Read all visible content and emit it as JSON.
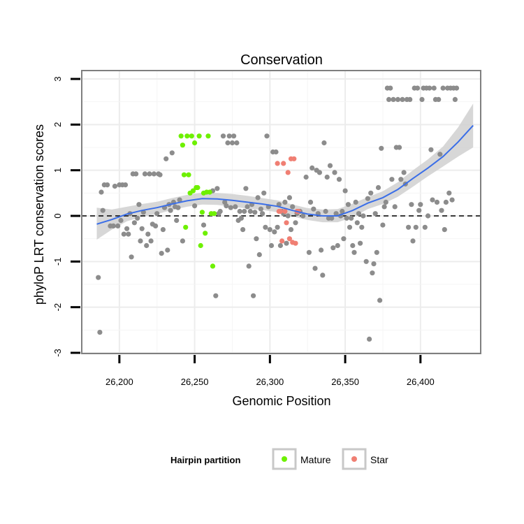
{
  "chart_data": {
    "type": "scatter",
    "title": "Conservation",
    "xlabel": "Genomic Position",
    "ylabel": "phyloP LRT conservation scores",
    "xlim": [
      26175,
      26440
    ],
    "ylim": [
      -3,
      3
    ],
    "xticks": [
      26200,
      26250,
      26300,
      26350,
      26400
    ],
    "xtick_labels": [
      "26,200",
      "26,250",
      "26,300",
      "26,350",
      "26,400"
    ],
    "yticks": [
      -3,
      -2,
      -1,
      0,
      1,
      2,
      3
    ],
    "ytick_labels": [
      "-3",
      "-2",
      "-1",
      "0",
      "1",
      "2",
      "3"
    ],
    "grid": true,
    "reference_line": {
      "y": 0,
      "style": "dashed"
    },
    "legend": {
      "title": "Hairpin partition",
      "position": "bottom",
      "entries": [
        {
          "label": "Mature",
          "color": "#6ef000"
        },
        {
          "label": "Star",
          "color": "#f07f73"
        }
      ]
    },
    "colors": {
      "other": "#8c8c8c",
      "Mature": "#6ef000",
      "Star": "#f07f73",
      "smooth": "#3a6ee8",
      "band": "#d3d3d3"
    },
    "series": [
      {
        "name": "",
        "color": "#8c8c8c",
        "points": [
          [
            26186,
            -1.35
          ],
          [
            26187,
            -2.55
          ],
          [
            26188,
            0.52
          ],
          [
            26189,
            0.12
          ],
          [
            26190,
            0.68
          ],
          [
            26192,
            0.68
          ],
          [
            26194,
            -0.22
          ],
          [
            26196,
            -0.22
          ],
          [
            26197,
            0.65
          ],
          [
            26199,
            -0.22
          ],
          [
            26200,
            0.68
          ],
          [
            26201,
            -0.1
          ],
          [
            26202,
            0.68
          ],
          [
            26203,
            -0.4
          ],
          [
            26204,
            0.68
          ],
          [
            26205,
            -0.28
          ],
          [
            26206,
            -0.4
          ],
          [
            26207,
            0.05
          ],
          [
            26208,
            -0.9
          ],
          [
            26209,
            0.92
          ],
          [
            26210,
            -0.15
          ],
          [
            26211,
            0.92
          ],
          [
            26212,
            -0.05
          ],
          [
            26213,
            0.25
          ],
          [
            26214,
            -0.55
          ],
          [
            26215,
            -0.28
          ],
          [
            26216,
            0.08
          ],
          [
            26217,
            0.92
          ],
          [
            26218,
            -0.65
          ],
          [
            26219,
            -0.4
          ],
          [
            26220,
            0.92
          ],
          [
            26221,
            -0.55
          ],
          [
            26222,
            -0.18
          ],
          [
            26223,
            0.92
          ],
          [
            26224,
            -0.22
          ],
          [
            26225,
            0.05
          ],
          [
            26226,
            0.92
          ],
          [
            26227,
            0.9
          ],
          [
            26228,
            -0.82
          ],
          [
            26229,
            -0.3
          ],
          [
            26230,
            0.18
          ],
          [
            26231,
            1.25
          ],
          [
            26232,
            -0.75
          ],
          [
            26233,
            0.25
          ],
          [
            26234,
            0.12
          ],
          [
            26235,
            1.38
          ],
          [
            26236,
            0.3
          ],
          [
            26237,
            0.2
          ],
          [
            26238,
            -0.1
          ],
          [
            26239,
            0.18
          ],
          [
            26240,
            0.35
          ],
          [
            26242,
            -0.55
          ],
          [
            26250,
            0.22
          ],
          [
            26256,
            -0.2
          ],
          [
            26262,
            0.55
          ],
          [
            26264,
            -1.75
          ],
          [
            26265,
            0.6
          ],
          [
            26266,
            0.05
          ],
          [
            26267,
            0.1
          ],
          [
            26269,
            1.75
          ],
          [
            26270,
            0.3
          ],
          [
            26271,
            0.22
          ],
          [
            26272,
            1.6
          ],
          [
            26273,
            1.75
          ],
          [
            26274,
            0.18
          ],
          [
            26275,
            1.6
          ],
          [
            26276,
            1.75
          ],
          [
            26277,
            0.2
          ],
          [
            26278,
            1.6
          ],
          [
            26279,
            -0.1
          ],
          [
            26280,
            0.1
          ],
          [
            26281,
            -0.05
          ],
          [
            26282,
            -0.3
          ],
          [
            26283,
            0.1
          ],
          [
            26284,
            0.6
          ],
          [
            26285,
            0.2
          ],
          [
            26286,
            -1.1
          ],
          [
            26287,
            0.1
          ],
          [
            26288,
            0.25
          ],
          [
            26289,
            -1.75
          ],
          [
            26290,
            0.08
          ],
          [
            26291,
            -0.5
          ],
          [
            26292,
            0.4
          ],
          [
            26293,
            -0.85
          ],
          [
            26294,
            0.15
          ],
          [
            26295,
            0.05
          ],
          [
            26296,
            0.5
          ],
          [
            26297,
            -0.25
          ],
          [
            26298,
            1.75
          ],
          [
            26299,
            0.2
          ],
          [
            26300,
            -0.3
          ],
          [
            26301,
            -0.65
          ],
          [
            26302,
            1.4
          ],
          [
            26303,
            -0.35
          ],
          [
            26304,
            1.4
          ],
          [
            26305,
            -0.25
          ],
          [
            26306,
            0.25
          ],
          [
            26307,
            -0.65
          ],
          [
            26308,
            0.1
          ],
          [
            26309,
            0.05
          ],
          [
            26310,
            0.3
          ],
          [
            26311,
            -0.6
          ],
          [
            26312,
            0.0
          ],
          [
            26313,
            0.4
          ],
          [
            26314,
            -0.3
          ],
          [
            26315,
            0.2
          ],
          [
            26317,
            -0.15
          ],
          [
            26318,
            0.05
          ],
          [
            26320,
            0.1
          ],
          [
            26322,
            0.0
          ],
          [
            26324,
            0.85
          ],
          [
            26326,
            -0.8
          ],
          [
            26327,
            0.3
          ],
          [
            26328,
            1.05
          ],
          [
            26329,
            0.15
          ],
          [
            26330,
            -1.15
          ],
          [
            26331,
            1.0
          ],
          [
            26332,
            0.05
          ],
          [
            26333,
            0.95
          ],
          [
            26334,
            -0.75
          ],
          [
            26335,
            -1.3
          ],
          [
            26336,
            1.6
          ],
          [
            26337,
            0.1
          ],
          [
            26338,
            0.85
          ],
          [
            26339,
            -0.05
          ],
          [
            26340,
            1.1
          ],
          [
            26341,
            -0.05
          ],
          [
            26342,
            -0.7
          ],
          [
            26343,
            0.95
          ],
          [
            26344,
            0.05
          ],
          [
            26345,
            -0.65
          ],
          [
            26346,
            0.8
          ],
          [
            26347,
            0.0
          ],
          [
            26348,
            0.1
          ],
          [
            26349,
            -0.5
          ],
          [
            26350,
            0.55
          ],
          [
            26351,
            -0.05
          ],
          [
            26352,
            0.25
          ],
          [
            26353,
            -0.25
          ],
          [
            26354,
            -0.05
          ],
          [
            26355,
            -0.65
          ],
          [
            26356,
            -0.8
          ],
          [
            26357,
            0.3
          ],
          [
            26358,
            -0.15
          ],
          [
            26359,
            0.05
          ],
          [
            26360,
            -0.6
          ],
          [
            26361,
            -0.25
          ],
          [
            26362,
            0.0
          ],
          [
            26364,
            -1.0
          ],
          [
            26365,
            0.38
          ],
          [
            26366,
            -2.7
          ],
          [
            26367,
            0.5
          ],
          [
            26368,
            -1.25
          ],
          [
            26369,
            -1.05
          ],
          [
            26370,
            0.05
          ],
          [
            26371,
            -0.8
          ],
          [
            26372,
            0.62
          ],
          [
            26373,
            -1.85
          ],
          [
            26374,
            1.48
          ],
          [
            26375,
            -0.2
          ],
          [
            26376,
            0.2
          ],
          [
            26377,
            0.3
          ],
          [
            26378,
            2.8
          ],
          [
            26379,
            2.55
          ],
          [
            26380,
            2.8
          ],
          [
            26381,
            0.8
          ],
          [
            26382,
            2.55
          ],
          [
            26383,
            0.2
          ],
          [
            26384,
            1.5
          ],
          [
            26385,
            2.55
          ],
          [
            26386,
            1.5
          ],
          [
            26387,
            0.8
          ],
          [
            26388,
            2.55
          ],
          [
            26389,
            0.95
          ],
          [
            26390,
            0.7
          ],
          [
            26391,
            2.55
          ],
          [
            26392,
            -0.25
          ],
          [
            26393,
            2.55
          ],
          [
            26394,
            0.25
          ],
          [
            26395,
            -0.55
          ],
          [
            26396,
            2.8
          ],
          [
            26397,
            -0.25
          ],
          [
            26398,
            2.8
          ],
          [
            26399,
            0.12
          ],
          [
            26400,
            0.25
          ],
          [
            26401,
            2.55
          ],
          [
            26402,
            2.8
          ],
          [
            26403,
            -0.25
          ],
          [
            26404,
            2.8
          ],
          [
            26405,
            0.0
          ],
          [
            26406,
            2.8
          ],
          [
            26407,
            1.45
          ],
          [
            26408,
            0.35
          ],
          [
            26409,
            2.8
          ],
          [
            26410,
            2.55
          ],
          [
            26411,
            0.3
          ],
          [
            26412,
            2.55
          ],
          [
            26413,
            1.35
          ],
          [
            26414,
            0.12
          ],
          [
            26415,
            2.8
          ],
          [
            26416,
            -0.3
          ],
          [
            26417,
            0.3
          ],
          [
            26418,
            2.8
          ],
          [
            26419,
            0.5
          ],
          [
            26420,
            2.8
          ],
          [
            26421,
            0.35
          ],
          [
            26422,
            2.8
          ],
          [
            26423,
            2.55
          ],
          [
            26424,
            2.8
          ]
        ]
      },
      {
        "name": "Mature",
        "color": "#6ef000",
        "points": [
          [
            26241,
            1.75
          ],
          [
            26242,
            1.55
          ],
          [
            26243,
            0.9
          ],
          [
            26244,
            -0.25
          ],
          [
            26245,
            1.75
          ],
          [
            26246,
            0.9
          ],
          [
            26247,
            0.5
          ],
          [
            26248,
            1.75
          ],
          [
            26249,
            0.55
          ],
          [
            26250,
            1.6
          ],
          [
            26251,
            0.62
          ],
          [
            26252,
            0.62
          ],
          [
            26253,
            1.75
          ],
          [
            26254,
            -0.65
          ],
          [
            26255,
            0.08
          ],
          [
            26256,
            0.5
          ],
          [
            26257,
            -0.38
          ],
          [
            26258,
            0.52
          ],
          [
            26259,
            1.75
          ],
          [
            26260,
            0.52
          ],
          [
            26261,
            0.05
          ],
          [
            26262,
            -1.1
          ],
          [
            26263,
            0.05
          ]
        ]
      },
      {
        "name": "Star",
        "color": "#f07f73",
        "points": [
          [
            26305,
            1.15
          ],
          [
            26306,
            0.1
          ],
          [
            26307,
            0.1
          ],
          [
            26308,
            -0.55
          ],
          [
            26309,
            1.15
          ],
          [
            26310,
            0.1
          ],
          [
            26311,
            -0.15
          ],
          [
            26312,
            0.95
          ],
          [
            26313,
            -0.5
          ],
          [
            26314,
            1.25
          ],
          [
            26315,
            -0.58
          ],
          [
            26316,
            1.25
          ],
          [
            26317,
            -0.6
          ],
          [
            26318,
            0.1
          ],
          [
            26319,
            0.1
          ]
        ]
      }
    ],
    "smooth": {
      "x": [
        26185,
        26195,
        26205,
        26215,
        26225,
        26235,
        26245,
        26255,
        26265,
        26275,
        26285,
        26295,
        26305,
        26315,
        26325,
        26335,
        26345,
        26355,
        26365,
        26375,
        26385,
        26395,
        26405,
        26415,
        26425,
        26435
      ],
      "y": [
        -0.18,
        -0.08,
        0.04,
        0.12,
        0.18,
        0.26,
        0.33,
        0.38,
        0.37,
        0.34,
        0.3,
        0.26,
        0.21,
        0.12,
        0.04,
        0.0,
        0.0,
        0.12,
        0.28,
        0.4,
        0.58,
        0.82,
        1.05,
        1.3,
        1.62,
        1.98
      ],
      "lower": [
        -0.52,
        -0.3,
        -0.12,
        -0.02,
        0.04,
        0.13,
        0.2,
        0.25,
        0.24,
        0.2,
        0.16,
        0.13,
        0.08,
        -0.01,
        -0.09,
        -0.14,
        -0.14,
        -0.03,
        0.15,
        0.26,
        0.42,
        0.64,
        0.87,
        1.08,
        1.3,
        1.5
      ],
      "upper": [
        0.18,
        0.14,
        0.2,
        0.26,
        0.31,
        0.39,
        0.46,
        0.51,
        0.5,
        0.48,
        0.44,
        0.39,
        0.34,
        0.25,
        0.17,
        0.14,
        0.15,
        0.27,
        0.41,
        0.54,
        0.74,
        1.0,
        1.24,
        1.52,
        1.94,
        2.46
      ]
    }
  }
}
